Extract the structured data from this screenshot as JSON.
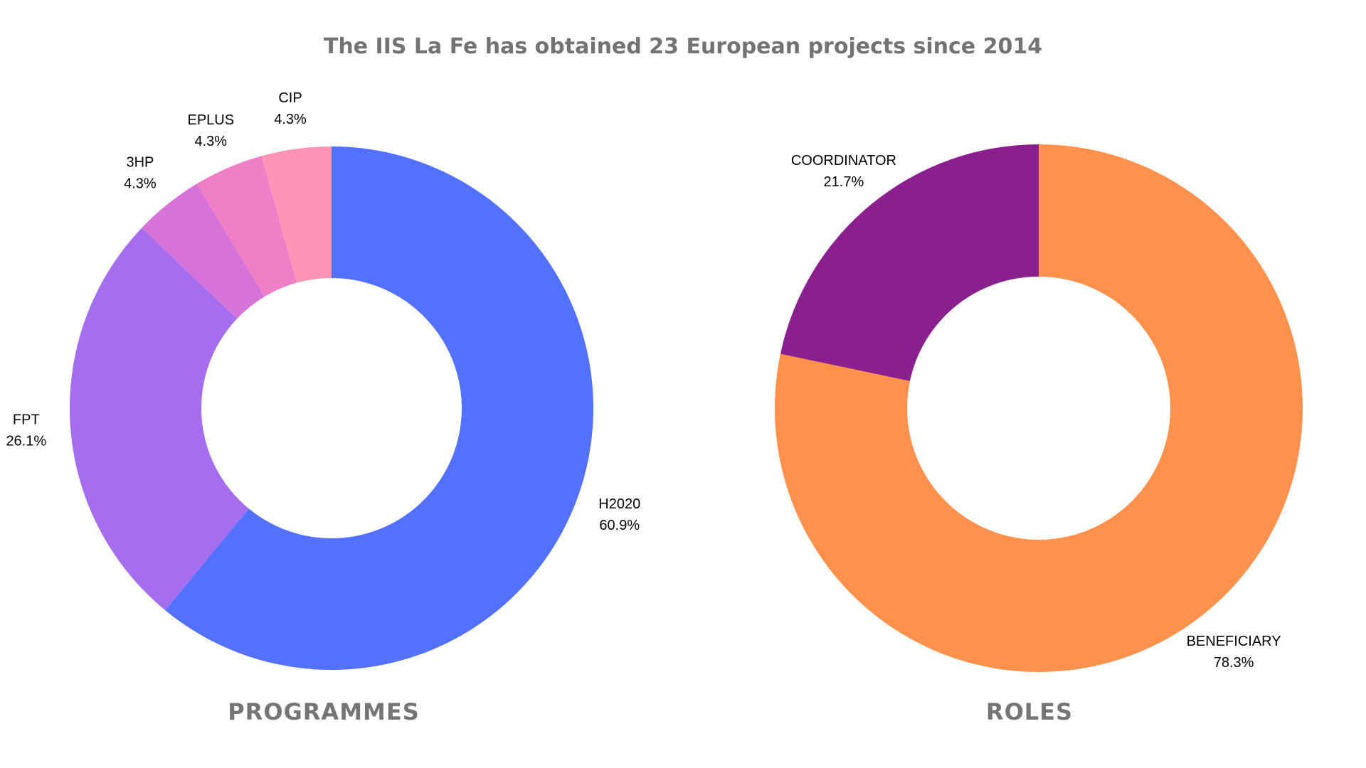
{
  "title": "The IIS La Fe has obtained 23 European projects since 2014",
  "chart_data": [
    {
      "type": "pie",
      "donut": true,
      "title": "PROGRAMMES",
      "categories": [
        "H2020",
        "FPT",
        "3HP",
        "EPLUS",
        "CIP"
      ],
      "values": [
        60.9,
        26.1,
        4.3,
        4.3,
        4.3
      ],
      "labels": [
        "60.9%",
        "26.1%",
        "4.3%",
        "4.3%",
        "4.3%"
      ],
      "colors": [
        "#5271ff",
        "#a66ded",
        "#d672d9",
        "#f07fc8",
        "#ff94b6"
      ]
    },
    {
      "type": "pie",
      "donut": true,
      "title": "ROLES",
      "categories": [
        "BENEFICIARY",
        "COORDINATOR"
      ],
      "values": [
        78.3,
        21.7
      ],
      "labels": [
        "78.3%",
        "21.7%"
      ],
      "colors": [
        "#ff914d",
        "#8a208e"
      ]
    }
  ]
}
